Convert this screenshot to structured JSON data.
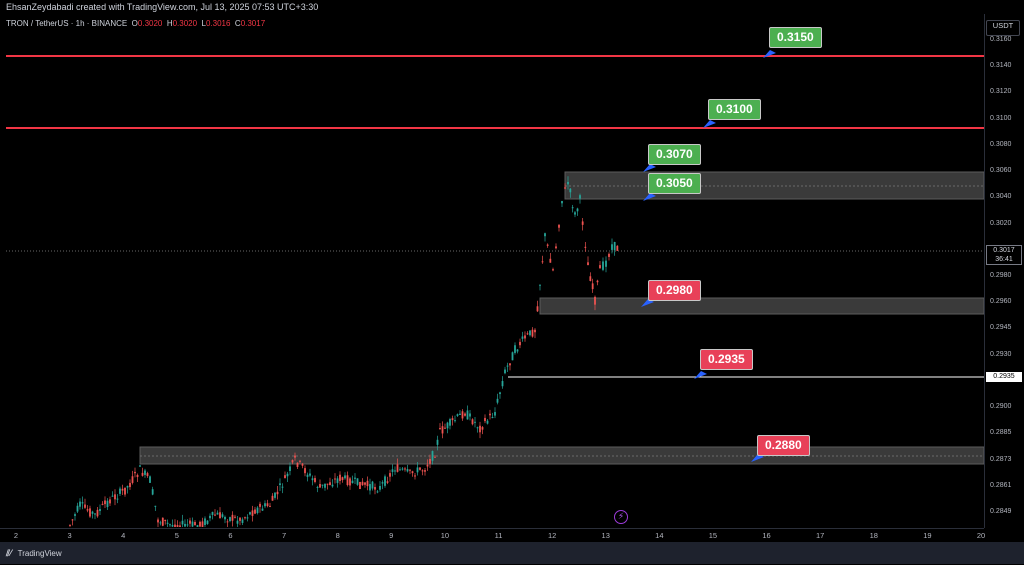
{
  "header": {
    "author_line": "EhsanZeydabadi created with TradingView.com, Jul 13, 2025 07:53 UTC+3:30"
  },
  "symbol": {
    "name": "TRON / TetherUS · 1h · BINANCE",
    "open_label": "O",
    "open": "0.3020",
    "high_label": "H",
    "high": "0.3020",
    "low_label": "L",
    "low": "0.3016",
    "close_label": "C",
    "close": "0.3017"
  },
  "price_axis": {
    "currency": "USDT",
    "ticks": [
      "0.3160",
      "0.3140",
      "0.3120",
      "0.3100",
      "0.3080",
      "0.3060",
      "0.3040",
      "0.3020",
      "0.3000",
      "0.2980",
      "0.2960",
      "0.2945",
      "0.2930",
      "0.2915",
      "0.2900",
      "0.2885",
      "0.2873",
      "0.2861",
      "0.2849"
    ],
    "current_price": "0.3017",
    "countdown": "36:41",
    "marked_level": "0.2935"
  },
  "time_axis": {
    "ticks": [
      "2",
      "3",
      "4",
      "5",
      "6",
      "7",
      "8",
      "9",
      "10",
      "11",
      "12",
      "13",
      "14",
      "15",
      "16",
      "17",
      "18",
      "19",
      "20"
    ]
  },
  "levels": {
    "resistance_1": "0.3150",
    "resistance_2": "0.3100",
    "zone_top": "0.3070",
    "zone_bottom": "0.3050",
    "support_zone": "0.2980",
    "support_line": "0.2935",
    "support_zone_2": "0.2880"
  },
  "footer": {
    "brand": "TradingView"
  },
  "colors": {
    "green": "#4caf50",
    "red": "#e84058",
    "up": "#26a69a",
    "down": "#ef5350",
    "resistance_line": "#f23645"
  }
}
